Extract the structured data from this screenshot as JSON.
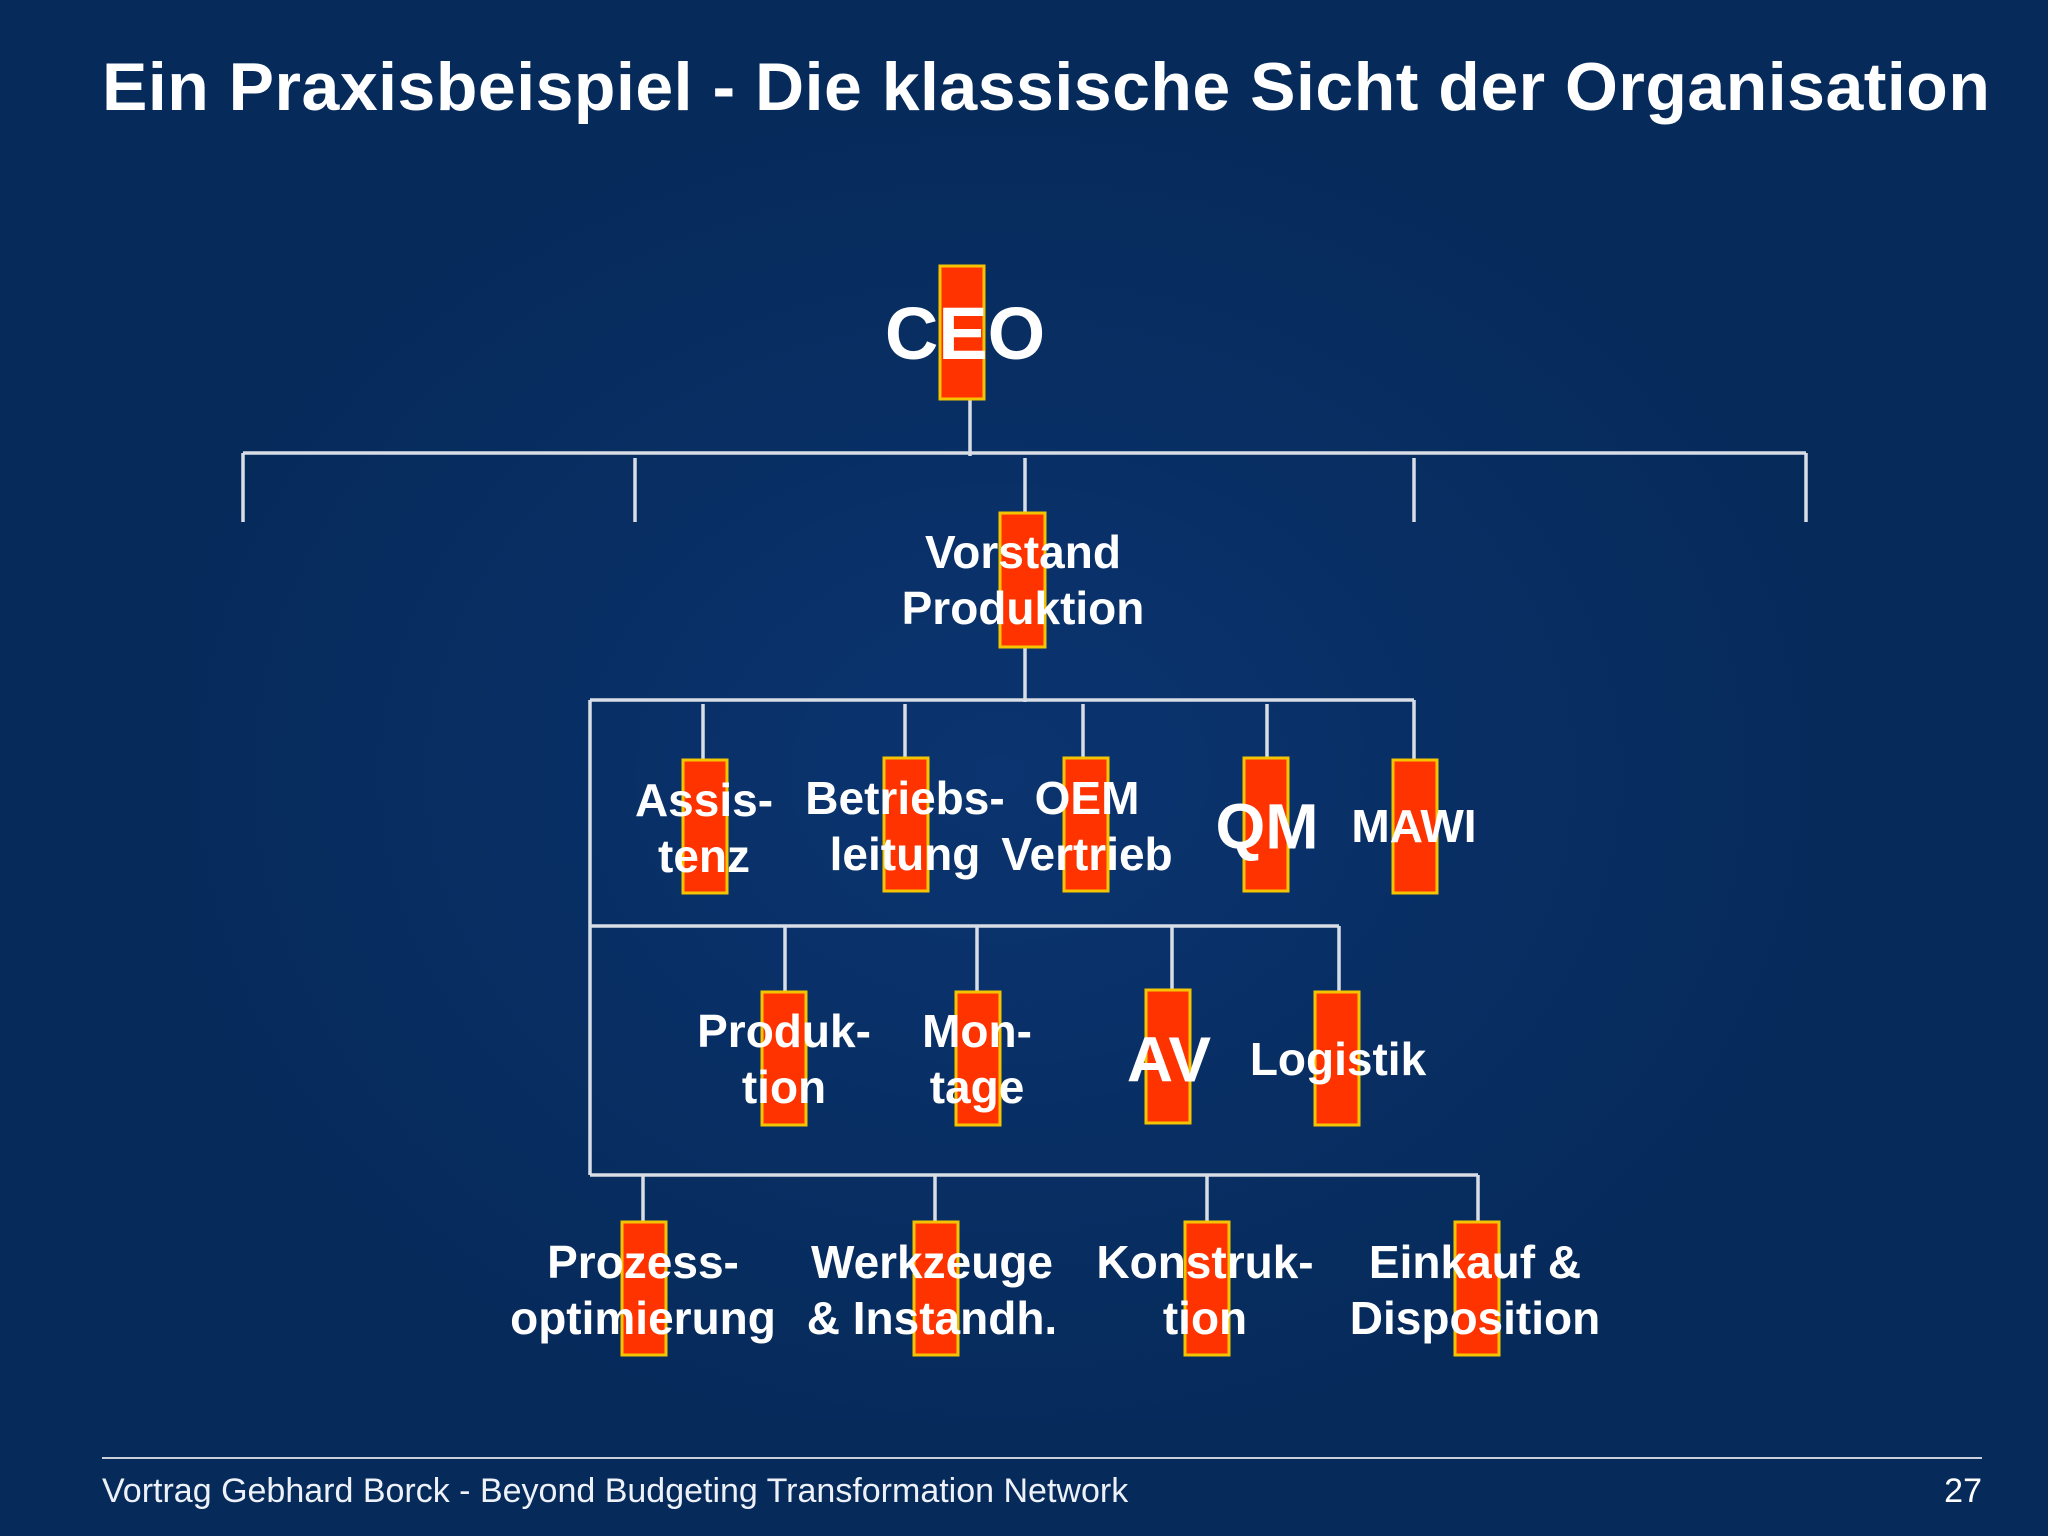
{
  "slide": {
    "title": "Ein Praxisbeispiel - Die klassische Sicht der Organisation",
    "footer": "Vortrag Gebhard Borck - Beyond Budgeting Transformation Network",
    "page_number": "27"
  },
  "colors": {
    "background": "#062a5a",
    "box_fill": "#ff3300",
    "box_border": "#f5c400",
    "line": "#d8dde6",
    "text": "#ffffff"
  },
  "org_chart": {
    "ceo": {
      "lines": [
        "CEO"
      ]
    },
    "board": {
      "lines": [
        "Vorstand",
        "Produktion"
      ]
    },
    "row1": [
      {
        "lines": [
          "Assis-",
          "tenz"
        ]
      },
      {
        "lines": [
          "Betriebs-",
          "leitung"
        ]
      },
      {
        "lines": [
          "OEM",
          "Vertrieb"
        ]
      },
      {
        "lines": [
          "QM"
        ]
      },
      {
        "lines": [
          "MAWI"
        ]
      }
    ],
    "row2": [
      {
        "lines": [
          "Produk-",
          "tion"
        ]
      },
      {
        "lines": [
          "Mon-",
          "tage"
        ]
      },
      {
        "lines": [
          "AV"
        ]
      },
      {
        "lines": [
          "Logistik"
        ]
      }
    ],
    "row3": [
      {
        "lines": [
          "Prozess-",
          "optimierung"
        ]
      },
      {
        "lines": [
          "Werkzeuge",
          "& Instandh."
        ]
      },
      {
        "lines": [
          "Konstruk-",
          "tion"
        ]
      },
      {
        "lines": [
          "Einkauf &",
          "Disposition"
        ]
      }
    ]
  }
}
